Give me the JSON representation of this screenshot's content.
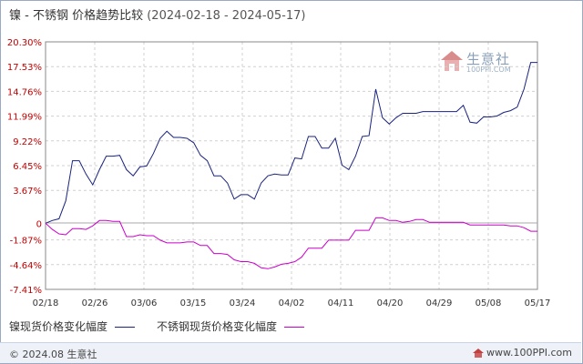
{
  "title": {
    "text": "镍 - 不锈钢 价格趋势比较",
    "date_range": "(2024-02-18 - 2024-05-17)"
  },
  "watermark": {
    "name": "生意社",
    "url": "100PPI.COM"
  },
  "legend": {
    "items": [
      {
        "label": "镍现货价格变化幅度",
        "color": "#1a237e"
      },
      {
        "label": "不锈钢现货价格变化幅度",
        "color": "#cc00cc"
      }
    ]
  },
  "footer": {
    "copyright": "© 2024.08 生意社",
    "site": "www.100PPI.com"
  },
  "chart_data": {
    "type": "line",
    "ylim": [
      -7.41,
      20.3
    ],
    "y_ticks": [
      "20.30%",
      "17.53%",
      "14.76%",
      "11.99%",
      "9.22%",
      "6.45%",
      "3.67%",
      "0",
      "-1.87%",
      "-4.64%",
      "-7.41%"
    ],
    "y_tick_values": [
      20.3,
      17.53,
      14.76,
      11.99,
      9.22,
      6.45,
      3.67,
      0,
      -1.87,
      -4.64,
      -7.41
    ],
    "x_ticks": [
      "02/18",
      "02/26",
      "03/06",
      "03/15",
      "03/24",
      "04/02",
      "04/11",
      "04/20",
      "04/29",
      "05/08",
      "05/17"
    ],
    "x": [
      "02/18",
      "02/20",
      "02/21",
      "02/22",
      "02/23",
      "02/24",
      "02/26",
      "02/27",
      "02/28",
      "02/29",
      "03/01",
      "03/02",
      "03/04",
      "03/05",
      "03/06",
      "03/07",
      "03/08",
      "03/09",
      "03/11",
      "03/12",
      "03/13",
      "03/14",
      "03/15",
      "03/16",
      "03/18",
      "03/19",
      "03/20",
      "03/21",
      "03/22",
      "03/23",
      "03/25",
      "03/26",
      "03/27",
      "03/28",
      "03/29",
      "03/30",
      "04/01",
      "04/02",
      "04/03",
      "04/06",
      "04/07",
      "04/08",
      "04/09",
      "04/10",
      "04/11",
      "04/12",
      "04/13",
      "04/15",
      "04/16",
      "04/17",
      "04/18",
      "04/19",
      "04/20",
      "04/21",
      "04/22",
      "04/23",
      "04/24",
      "04/25",
      "04/26",
      "04/27",
      "04/28",
      "04/29",
      "04/30",
      "05/06",
      "05/07",
      "05/08",
      "05/09",
      "05/10",
      "05/11",
      "05/13",
      "05/14",
      "05/15",
      "05/16",
      "05/17"
    ],
    "series": [
      {
        "name": "镍现货价格变化幅度",
        "color": "#1a237e",
        "values": [
          0.0,
          0.3,
          0.5,
          2.5,
          7.0,
          7.0,
          5.5,
          4.3,
          6.0,
          7.5,
          7.5,
          7.6,
          6.0,
          5.3,
          6.3,
          6.4,
          7.8,
          9.5,
          10.3,
          9.6,
          9.6,
          9.5,
          9.0,
          7.6,
          7.0,
          5.3,
          5.3,
          4.5,
          2.7,
          3.2,
          3.2,
          2.7,
          4.5,
          5.3,
          5.5,
          5.4,
          5.4,
          7.3,
          7.2,
          9.7,
          9.7,
          8.4,
          8.4,
          9.5,
          6.5,
          6.0,
          7.5,
          9.7,
          9.8,
          15.0,
          11.8,
          11.1,
          11.8,
          12.3,
          12.3,
          12.3,
          12.5,
          12.5,
          12.5,
          12.5,
          12.5,
          12.5,
          13.2,
          11.3,
          11.2,
          11.9,
          11.9,
          12.0,
          12.4,
          12.6,
          13.0,
          15.0,
          18.0,
          18.0
        ]
      },
      {
        "name": "不锈钢现货价格变化幅度",
        "color": "#cc00cc",
        "values": [
          0.0,
          -0.7,
          -1.2,
          -1.3,
          -0.6,
          -0.6,
          -0.7,
          -0.3,
          0.3,
          0.3,
          0.2,
          0.2,
          -1.5,
          -1.5,
          -1.3,
          -1.4,
          -1.4,
          -1.9,
          -2.2,
          -2.2,
          -2.2,
          -2.1,
          -2.1,
          -2.5,
          -2.5,
          -3.4,
          -3.4,
          -3.5,
          -4.1,
          -4.3,
          -4.3,
          -4.5,
          -5.0,
          -5.1,
          -4.9,
          -4.6,
          -4.5,
          -4.3,
          -3.8,
          -2.8,
          -2.8,
          -2.8,
          -1.9,
          -1.9,
          -1.9,
          -1.9,
          -0.8,
          -0.8,
          -0.8,
          0.6,
          0.6,
          0.3,
          0.3,
          0.1,
          0.2,
          0.4,
          0.4,
          0.1,
          0.1,
          0.1,
          0.1,
          0.1,
          0.1,
          -0.2,
          -0.2,
          -0.2,
          -0.2,
          -0.2,
          -0.2,
          -0.3,
          -0.3,
          -0.5,
          -0.9,
          -0.9
        ]
      }
    ],
    "grid": true
  }
}
